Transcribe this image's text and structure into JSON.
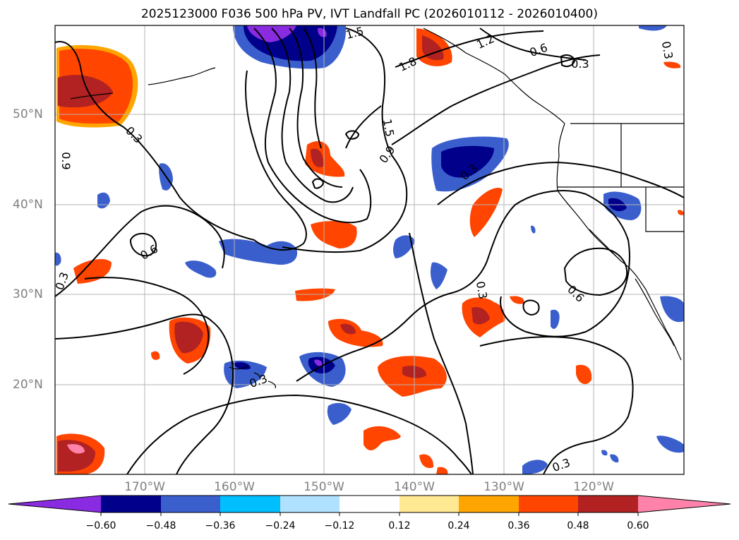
{
  "title": "2025123000 F036 500 hPa PV, IVT Landfall PC (2026010112 - 2026010400)",
  "lat_labels": [
    "50°N",
    "40°N",
    "30°N",
    "20°N"
  ],
  "lon_labels": [
    "170°W",
    "160°W",
    "150°W",
    "140°W",
    "130°W",
    "120°W"
  ],
  "contour_labels": [
    "1.5",
    "1.2",
    "0.6",
    "0.3",
    "1.8",
    "0.3",
    "0.3",
    "1.5",
    "0.9",
    "0.3",
    "0.9",
    "0.6",
    "0.3",
    "0.3",
    "0.6",
    "0.3",
    "0.3"
  ],
  "colorbar": {
    "tick_labels": [
      "−0.60",
      "−0.48",
      "−0.36",
      "−0.24",
      "−0.12",
      "0.12",
      "0.24",
      "0.36",
      "0.48",
      "0.60"
    ],
    "colors": [
      "#8a2be2",
      "#00008b",
      "#3a5fcd",
      "#00bfff",
      "#b0e2ff",
      "#ffffff",
      "#ffe992",
      "#ffa500",
      "#ff4500",
      "#b22222",
      "#ff82ab"
    ]
  },
  "colors": {
    "gridline": "#b4b4b4",
    "contour": "#000000",
    "neg_strong": "#00008b",
    "neg_mid": "#3a5fcd",
    "neg_light": "#00bfff",
    "pos_light": "#ffa500",
    "pos_mid": "#ff4500",
    "pos_strong": "#b22222",
    "pos_max": "#ff82ab"
  }
}
